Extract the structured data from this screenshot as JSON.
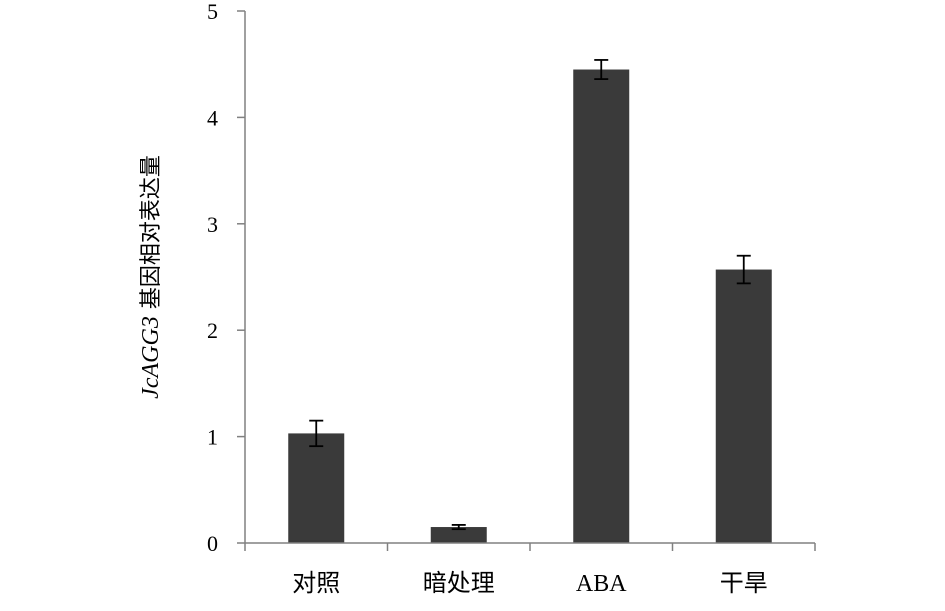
{
  "chart_data": {
    "type": "bar",
    "title": "",
    "xlabel": "",
    "ylabel_gene": "JcAGG3",
    "ylabel_rest": " 基因相对表达量",
    "categories": [
      "对照",
      "暗处理",
      "ABA",
      "干旱"
    ],
    "values": [
      1.03,
      0.15,
      4.45,
      2.57
    ],
    "errors": [
      0.12,
      0.02,
      0.09,
      0.13
    ],
    "ylim": [
      0,
      5
    ],
    "yticks": [
      0,
      1,
      2,
      3,
      4,
      5
    ],
    "grid": false,
    "legend": "none",
    "bar_color": "#3a3a3a",
    "axis_color": "#808080",
    "error_color": "#000000"
  }
}
